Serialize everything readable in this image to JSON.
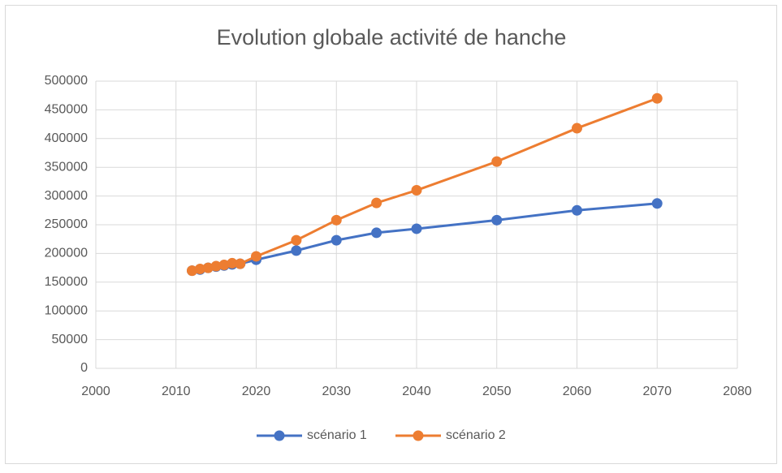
{
  "chart_data": {
    "type": "line",
    "title": "Evolution globale activité de hanche",
    "x": [
      2012,
      2013,
      2014,
      2015,
      2016,
      2017,
      2018,
      2020,
      2025,
      2030,
      2035,
      2040,
      2050,
      2060,
      2070
    ],
    "series": [
      {
        "name": "scénario 1",
        "color": "#4472c4",
        "values": [
          170000,
          172000,
          175000,
          177000,
          179000,
          181000,
          182000,
          189000,
          205000,
          223000,
          236000,
          243000,
          258000,
          275000,
          287000
        ]
      },
      {
        "name": "scénario 2",
        "color": "#ed7d31",
        "values": [
          170000,
          173000,
          175000,
          178000,
          180000,
          183000,
          182000,
          195000,
          223000,
          258000,
          288000,
          310000,
          360000,
          418000,
          470000
        ]
      }
    ],
    "xlim": [
      2000,
      2080
    ],
    "xticks": [
      2000,
      2010,
      2020,
      2030,
      2040,
      2050,
      2060,
      2070,
      2080
    ],
    "ylim": [
      0,
      500000
    ],
    "yticks": [
      0,
      50000,
      100000,
      150000,
      200000,
      250000,
      300000,
      350000,
      400000,
      450000,
      500000
    ],
    "grid": true,
    "legend": "bottom"
  }
}
